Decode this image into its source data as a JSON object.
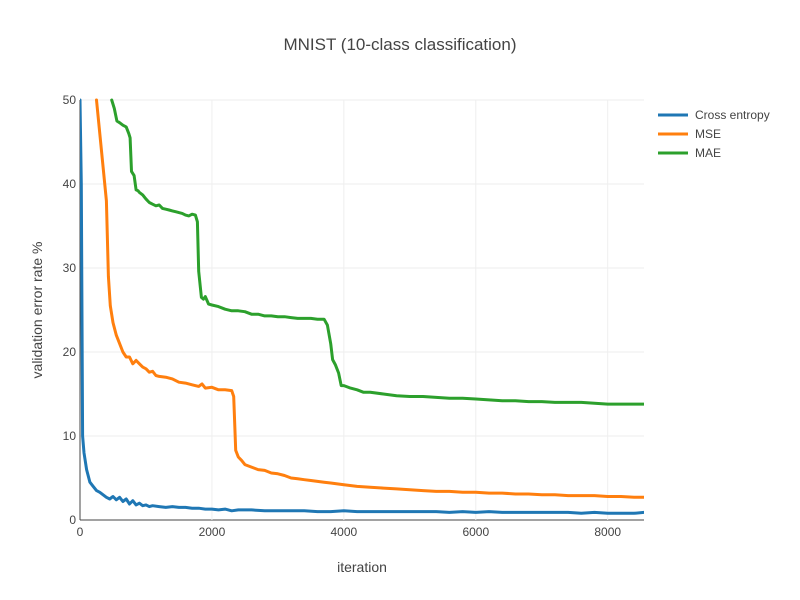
{
  "chart_data": {
    "type": "line",
    "title": "MNIST (10-class classification)",
    "xlabel": "iteration",
    "ylabel": "validation error rate %",
    "xlim": [
      0,
      8550
    ],
    "ylim": [
      0,
      50
    ],
    "xticks": [
      0,
      2000,
      4000,
      6000,
      8000
    ],
    "yticks": [
      0,
      10,
      20,
      30,
      40,
      50
    ],
    "grid": true,
    "legend_position": "top-right",
    "series": [
      {
        "name": "Cross entropy",
        "color": "#1f77b4",
        "x": [
          0,
          20,
          40,
          60,
          100,
          150,
          200,
          250,
          300,
          350,
          400,
          450,
          500,
          550,
          600,
          650,
          700,
          750,
          800,
          850,
          900,
          950,
          1000,
          1050,
          1100,
          1200,
          1300,
          1400,
          1500,
          1600,
          1700,
          1800,
          1900,
          2000,
          2100,
          2200,
          2300,
          2400,
          2600,
          2800,
          3000,
          3200,
          3400,
          3600,
          3800,
          4000,
          4200,
          4400,
          4600,
          4800,
          5000,
          5200,
          5400,
          5600,
          5800,
          6000,
          6200,
          6400,
          6600,
          6800,
          7000,
          7200,
          7400,
          7600,
          7800,
          8000,
          8200,
          8400,
          8550
        ],
        "y": [
          50,
          40,
          10,
          8,
          6,
          4.5,
          4,
          3.5,
          3.3,
          3,
          2.7,
          2.5,
          2.8,
          2.4,
          2.7,
          2.2,
          2.5,
          1.9,
          2.3,
          1.8,
          2.0,
          1.7,
          1.8,
          1.6,
          1.7,
          1.6,
          1.5,
          1.6,
          1.5,
          1.5,
          1.4,
          1.4,
          1.3,
          1.3,
          1.2,
          1.3,
          1.1,
          1.2,
          1.2,
          1.1,
          1.1,
          1.1,
          1.1,
          1.0,
          1.0,
          1.1,
          1.0,
          1.0,
          1.0,
          1.0,
          1.0,
          1.0,
          1.0,
          0.9,
          1.0,
          0.9,
          1.0,
          0.9,
          0.9,
          0.9,
          0.9,
          0.9,
          0.9,
          0.8,
          0.9,
          0.8,
          0.8,
          0.8,
          0.9
        ]
      },
      {
        "name": "MSE",
        "color": "#ff7f0e",
        "x": [
          250,
          300,
          350,
          400,
          430,
          460,
          500,
          550,
          600,
          650,
          700,
          750,
          800,
          850,
          900,
          950,
          1000,
          1050,
          1100,
          1150,
          1200,
          1300,
          1400,
          1500,
          1600,
          1700,
          1800,
          1850,
          1900,
          2000,
          2100,
          2200,
          2300,
          2330,
          2360,
          2400,
          2450,
          2500,
          2600,
          2700,
          2800,
          2900,
          3000,
          3100,
          3200,
          3300,
          3400,
          3500,
          3600,
          3700,
          3800,
          3900,
          4000,
          4200,
          4400,
          4600,
          4800,
          5000,
          5200,
          5400,
          5600,
          5800,
          6000,
          6200,
          6400,
          6600,
          6800,
          7000,
          7200,
          7400,
          7600,
          7800,
          8000,
          8200,
          8400,
          8550
        ],
        "y": [
          50,
          46,
          42,
          38,
          29,
          25.5,
          23.5,
          22,
          21,
          20,
          19.4,
          19.4,
          18.6,
          19.0,
          18.6,
          18.2,
          18.0,
          17.6,
          17.7,
          17.2,
          17.1,
          17.0,
          16.8,
          16.4,
          16.3,
          16.1,
          15.9,
          16.2,
          15.7,
          15.8,
          15.5,
          15.5,
          15.4,
          14.7,
          8.3,
          7.5,
          7.1,
          6.6,
          6.3,
          6.0,
          5.9,
          5.6,
          5.5,
          5.3,
          5.0,
          4.9,
          4.8,
          4.7,
          4.6,
          4.5,
          4.4,
          4.3,
          4.2,
          4.0,
          3.9,
          3.8,
          3.7,
          3.6,
          3.5,
          3.4,
          3.4,
          3.3,
          3.3,
          3.2,
          3.2,
          3.1,
          3.1,
          3.0,
          3.0,
          2.9,
          2.9,
          2.9,
          2.8,
          2.8,
          2.7,
          2.7
        ]
      },
      {
        "name": "MAE",
        "color": "#2ca02c",
        "x": [
          480,
          520,
          560,
          600,
          650,
          700,
          740,
          760,
          780,
          820,
          850,
          880,
          900,
          950,
          1000,
          1050,
          1100,
          1150,
          1200,
          1250,
          1300,
          1350,
          1400,
          1450,
          1500,
          1550,
          1600,
          1650,
          1700,
          1750,
          1780,
          1800,
          1840,
          1870,
          1900,
          1950,
          2000,
          2100,
          2200,
          2300,
          2400,
          2500,
          2600,
          2700,
          2800,
          2900,
          3000,
          3100,
          3200,
          3300,
          3400,
          3500,
          3600,
          3700,
          3750,
          3800,
          3830,
          3870,
          3920,
          3960,
          4000,
          4100,
          4200,
          4300,
          4400,
          4600,
          4800,
          5000,
          5200,
          5400,
          5600,
          5800,
          6000,
          6200,
          6400,
          6600,
          6800,
          7000,
          7200,
          7400,
          7600,
          7800,
          8000,
          8200,
          8400,
          8550
        ],
        "y": [
          50,
          49,
          47.5,
          47.3,
          47,
          46.8,
          46,
          45.5,
          41.5,
          41,
          39.3,
          39.2,
          39.0,
          38.7,
          38.2,
          37.8,
          37.6,
          37.4,
          37.5,
          37.1,
          37.0,
          36.9,
          36.8,
          36.7,
          36.6,
          36.5,
          36.3,
          36.2,
          36.4,
          36.3,
          35.5,
          29.6,
          26.5,
          26.3,
          26.6,
          25.7,
          25.6,
          25.4,
          25.1,
          24.9,
          24.9,
          24.8,
          24.5,
          24.5,
          24.3,
          24.3,
          24.2,
          24.2,
          24.1,
          24.0,
          24.0,
          24.0,
          23.9,
          23.9,
          23.2,
          21.0,
          19.1,
          18.5,
          17.5,
          16.0,
          16.0,
          15.7,
          15.5,
          15.2,
          15.2,
          15.0,
          14.8,
          14.7,
          14.7,
          14.6,
          14.5,
          14.5,
          14.4,
          14.3,
          14.2,
          14.2,
          14.1,
          14.1,
          14.0,
          14.0,
          14.0,
          13.9,
          13.8,
          13.8,
          13.8,
          13.8
        ]
      }
    ]
  }
}
